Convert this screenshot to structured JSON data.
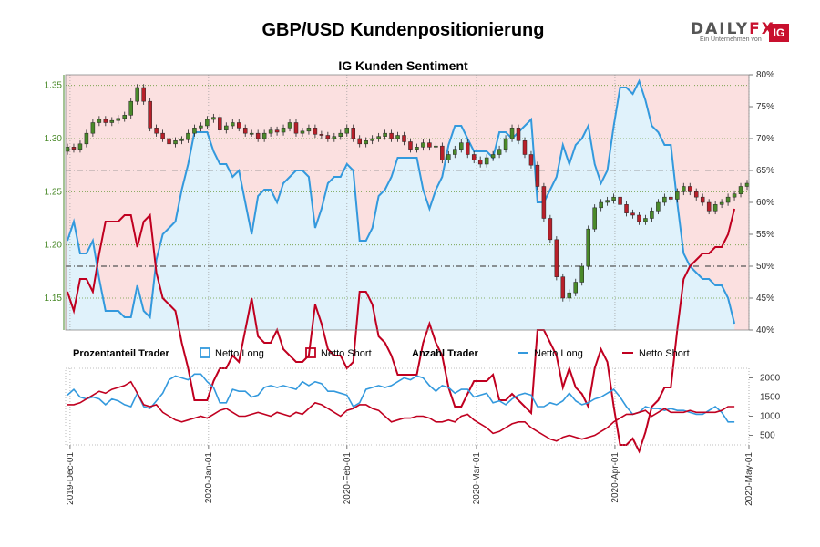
{
  "header": {
    "title": "GBP/USD Kundenpositionierung",
    "subtitle": "IG Kunden Sentiment",
    "logo_main": "DAILY",
    "logo_fx": "FX",
    "logo_sub": "Ein Unternehmen von",
    "logo_ig": "IG"
  },
  "legend": {
    "group1": "Prozentanteil Trader",
    "group2": "Anzahl Trader",
    "long": "Netto Long",
    "short": "Netto Short"
  },
  "colors": {
    "long": "#3399dd",
    "short": "#c00020",
    "long_fill": "#e0f2fb",
    "short_fill": "#fbe0e0",
    "candle_up": "#4a8a2a",
    "candle_down": "#b8202a"
  },
  "chart_data": [
    {
      "type": "candlestick",
      "title": "IG Kunden Sentiment",
      "ylim": [
        1.12,
        1.36
      ],
      "yticks": [
        "1.35",
        "1.30",
        "1.25",
        "1.20",
        "1.15"
      ],
      "xlim": [
        "2019-11-30",
        "2020-05-01"
      ],
      "close": [
        1.292,
        1.29,
        1.295,
        1.305,
        1.315,
        1.318,
        1.315,
        1.317,
        1.319,
        1.322,
        1.335,
        1.348,
        1.335,
        1.31,
        1.305,
        1.3,
        1.295,
        1.298,
        1.299,
        1.305,
        1.31,
        1.312,
        1.318,
        1.32,
        1.308,
        1.312,
        1.315,
        1.31,
        1.305,
        1.305,
        1.3,
        1.305,
        1.308,
        1.306,
        1.31,
        1.315,
        1.305,
        1.307,
        1.31,
        1.304,
        1.303,
        1.3,
        1.302,
        1.305,
        1.31,
        1.3,
        1.295,
        1.298,
        1.3,
        1.302,
        1.305,
        1.3,
        1.303,
        1.297,
        1.29,
        1.292,
        1.296,
        1.292,
        1.293,
        1.28,
        1.285,
        1.29,
        1.296,
        1.285,
        1.28,
        1.276,
        1.282,
        1.285,
        1.29,
        1.3,
        1.31,
        1.298,
        1.285,
        1.275,
        1.255,
        1.225,
        1.205,
        1.17,
        1.15,
        1.155,
        1.165,
        1.18,
        1.215,
        1.235,
        1.24,
        1.242,
        1.245,
        1.238,
        1.23,
        1.228,
        1.222,
        1.225,
        1.232,
        1.24,
        1.245,
        1.243,
        1.25,
        1.255,
        1.25,
        1.245,
        1.24,
        1.232,
        1.238,
        1.24,
        1.245,
        1.248,
        1.255,
        1.258
      ],
      "open_close_delta": 0.004,
      "long_pct": {
        "ylim": [
          40,
          80
        ],
        "yticks": [
          "80%",
          "75%",
          "70%",
          "65%",
          "60%",
          "55%",
          "50%",
          "45%",
          "40%"
        ],
        "values": [
          54,
          57,
          52,
          52,
          54,
          48,
          43,
          43,
          43,
          42,
          42,
          47,
          43,
          42,
          51,
          55,
          56,
          57,
          62,
          66,
          71,
          71,
          71,
          68,
          66,
          66,
          64,
          65,
          60,
          55,
          61,
          62,
          62,
          60,
          63,
          64,
          65,
          65,
          64,
          56,
          59,
          63,
          64,
          64,
          66,
          65,
          54,
          54,
          56,
          61,
          62,
          64,
          67,
          67,
          67,
          67,
          62,
          59,
          62,
          64,
          69,
          72,
          72,
          70,
          68,
          68,
          68,
          67,
          71,
          71,
          70,
          71,
          72,
          73,
          60,
          60,
          62,
          64,
          69,
          66,
          69,
          70,
          72,
          66,
          63,
          65,
          72,
          78,
          78,
          77,
          79,
          76,
          72,
          71,
          69,
          69,
          60,
          52,
          50,
          49,
          48,
          48,
          47,
          47,
          45,
          41
        ]
      }
    },
    {
      "type": "line",
      "title": "Anzahl Trader",
      "ylim": [
        250,
        2250
      ],
      "yticks": [
        "2000",
        "1500",
        "1000",
        "500"
      ],
      "series": [
        {
          "name": "Netto Long",
          "values": [
            1550,
            1700,
            1500,
            1450,
            1500,
            1450,
            1300,
            1450,
            1400,
            1300,
            1250,
            1600,
            1250,
            1200,
            1400,
            1600,
            1950,
            2050,
            2000,
            1950,
            2100,
            2100,
            1900,
            1750,
            1350,
            1350,
            1700,
            1650,
            1650,
            1500,
            1550,
            1750,
            1800,
            1750,
            1800,
            1750,
            1700,
            1900,
            1800,
            1900,
            1850,
            1650,
            1650,
            1600,
            1550,
            1250,
            1350,
            1700,
            1750,
            1800,
            1750,
            1800,
            1900,
            2000,
            1950,
            2050,
            2000,
            1800,
            1650,
            1800,
            1750,
            1600,
            1700,
            1700,
            1500,
            1550,
            1600,
            1350,
            1400,
            1300,
            1450,
            1550,
            1600,
            1550,
            1250,
            1250,
            1350,
            1300,
            1400,
            1600,
            1400,
            1300,
            1350,
            1450,
            1500,
            1600,
            1700,
            1500,
            1250,
            1050,
            1100,
            1250,
            1200,
            1200,
            1150,
            1200,
            1150,
            1150,
            1100,
            1050,
            1050,
            1150,
            1250,
            1100,
            850,
            850
          ]
        },
        {
          "name": "Netto Short",
          "values": [
            1300,
            1300,
            1350,
            1450,
            1550,
            1650,
            1600,
            1700,
            1750,
            1800,
            1900,
            1600,
            1300,
            1250,
            1300,
            1100,
            1000,
            900,
            850,
            900,
            950,
            1000,
            950,
            1050,
            1150,
            1200,
            1100,
            1000,
            1000,
            1050,
            1100,
            1050,
            1000,
            1100,
            1050,
            1000,
            1100,
            1050,
            1200,
            1350,
            1300,
            1200,
            1100,
            1000,
            1150,
            1200,
            1300,
            1300,
            1200,
            1150,
            1000,
            850,
            900,
            950,
            950,
            1000,
            1000,
            950,
            850,
            850,
            900,
            850,
            1000,
            1050,
            900,
            800,
            700,
            550,
            600,
            700,
            800,
            850,
            850,
            700,
            600,
            500,
            400,
            350,
            450,
            500,
            450,
            400,
            450,
            500,
            600,
            700,
            850,
            950,
            1050,
            1050,
            1100,
            1150,
            1000,
            1100,
            1200,
            1100,
            1100,
            1100,
            1150,
            1100,
            1100,
            1100,
            1100,
            1150,
            1250,
            1250
          ]
        }
      ]
    }
  ],
  "xaxis": {
    "tick_labels": [
      "2019-Dec-01",
      "2020-Jan-01",
      "2020-Feb-01",
      "2020-Mar-01",
      "2020-Apr-01",
      "2020-May-01"
    ],
    "tick_dates": [
      "2019-12-01",
      "2020-01-01",
      "2020-02-01",
      "2020-03-01",
      "2020-04-01",
      "2020-05-01"
    ]
  }
}
